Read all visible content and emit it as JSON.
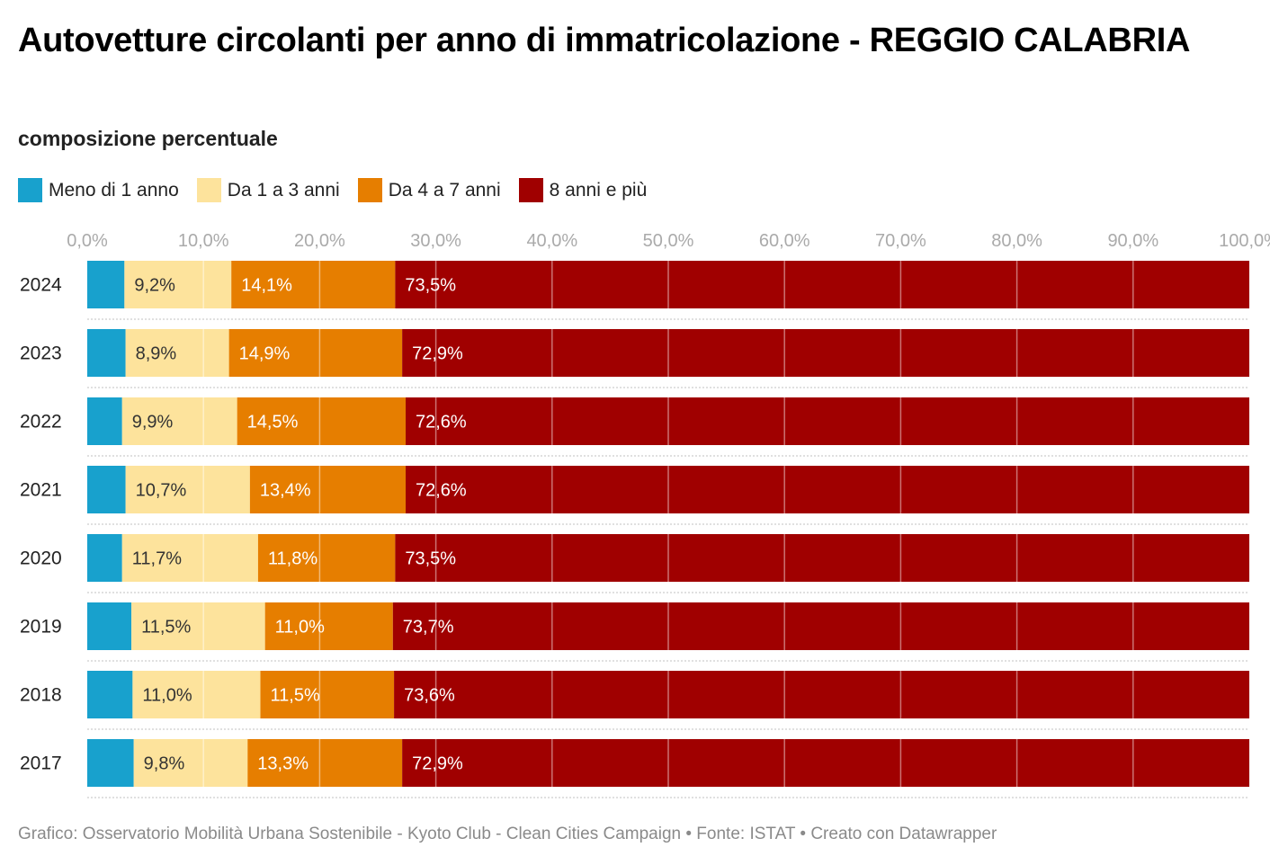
{
  "header": {
    "title": "Autovetture circolanti per anno di immatricolazione - REGGIO CALABRIA",
    "subtitle": "composizione percentuale"
  },
  "legend": [
    {
      "label": "Meno di 1 anno",
      "color": "#18a1cd"
    },
    {
      "label": "Da 1 a 3 anni",
      "color": "#fde39c"
    },
    {
      "label": "Da 4 a 7 anni",
      "color": "#e67e00"
    },
    {
      "label": "8 anni e più",
      "color": "#a00000"
    }
  ],
  "footer": {
    "text": "Grafico: Osservatorio Mobilità Urbana Sostenibile - Kyoto Club - Clean Cities Campaign • Fonte: ISTAT • Creato con Datawrapper"
  },
  "chart_data": {
    "type": "bar",
    "orientation": "horizontal",
    "stacked": true,
    "title": "Autovetture circolanti per anno di immatricolazione - REGGIO CALABRIA",
    "subtitle": "composizione percentuale",
    "xlabel": "",
    "ylabel": "",
    "xlim": [
      0,
      100
    ],
    "x_ticks": [
      "0,0%",
      "10,0%",
      "20,0%",
      "30,0%",
      "40,0%",
      "50,0%",
      "60,0%",
      "70,0%",
      "80,0%",
      "90,0%",
      "100,0%"
    ],
    "x_tick_values": [
      0,
      10,
      20,
      30,
      40,
      50,
      60,
      70,
      80,
      90,
      100
    ],
    "grid": true,
    "legend_position": "top-left",
    "categories": [
      "2024",
      "2023",
      "2022",
      "2021",
      "2020",
      "2019",
      "2018",
      "2017"
    ],
    "series": [
      {
        "name": "Meno di 1 anno",
        "color": "#18a1cd",
        "label_color": "#333333",
        "show_labels": false,
        "values": [
          3.2,
          3.3,
          3.0,
          3.3,
          3.0,
          3.8,
          3.9,
          4.0
        ],
        "labels": [
          "",
          "",
          "",
          "",
          "",
          "",
          "",
          ""
        ]
      },
      {
        "name": "Da 1 a 3 anni",
        "color": "#fde39c",
        "label_color": "#333333",
        "show_labels": true,
        "values": [
          9.2,
          8.9,
          9.9,
          10.7,
          11.7,
          11.5,
          11.0,
          9.8
        ],
        "labels": [
          "9,2%",
          "8,9%",
          "9,9%",
          "10,7%",
          "11,7%",
          "11,5%",
          "11,0%",
          "9,8%"
        ]
      },
      {
        "name": "Da 4 a 7 anni",
        "color": "#e67e00",
        "label_color": "#ffffff",
        "show_labels": true,
        "values": [
          14.1,
          14.9,
          14.5,
          13.4,
          11.8,
          11.0,
          11.5,
          13.3
        ],
        "labels": [
          "14,1%",
          "14,9%",
          "14,5%",
          "13,4%",
          "11,8%",
          "11,0%",
          "11,5%",
          "13,3%"
        ]
      },
      {
        "name": "8 anni e più",
        "color": "#a00000",
        "label_color": "#ffffff",
        "show_labels": true,
        "values": [
          73.5,
          72.9,
          72.6,
          72.6,
          73.5,
          73.7,
          73.6,
          72.9
        ],
        "labels": [
          "73,5%",
          "72,9%",
          "72,6%",
          "72,6%",
          "73,5%",
          "73,7%",
          "73,6%",
          "72,9%"
        ]
      }
    ]
  }
}
